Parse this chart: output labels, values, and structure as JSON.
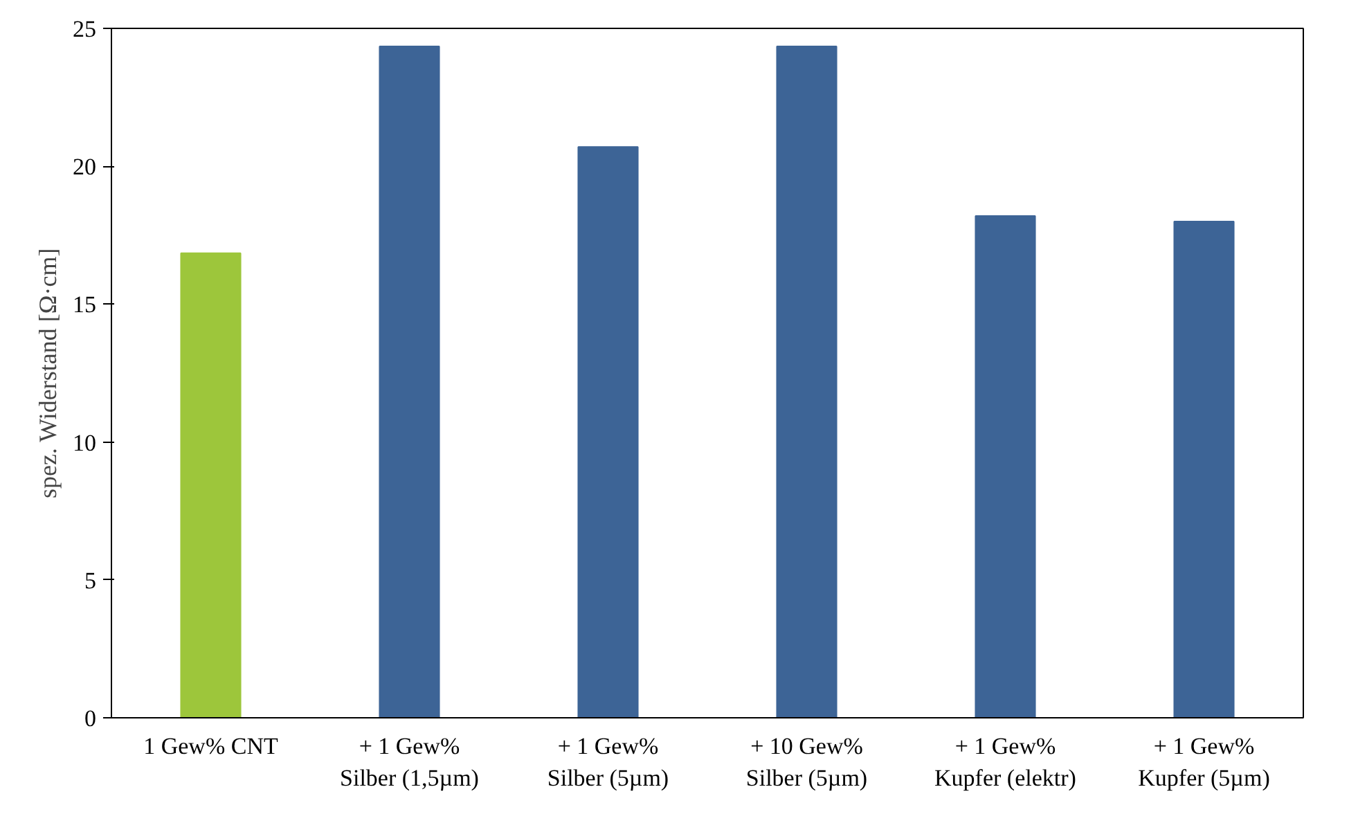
{
  "chart_data": {
    "type": "bar",
    "ylabel": "spez. Widerstand [Ω·cm]",
    "categories": [
      "1 Gew% CNT",
      "+ 1 Gew%\nSilber (1,5µm)",
      "+ 1 Gew%\nSilber (5µm)",
      "+ 10 Gew%\nSilber (5µm)",
      "+ 1 Gew%\nKupfer (elektr)",
      "+ 1 Gew%\nKupfer (5µm)"
    ],
    "values": [
      16.85,
      24.35,
      20.7,
      24.35,
      18.2,
      18.0
    ],
    "colors": [
      "#9dc63b",
      "#3d6496",
      "#3d6496",
      "#3d6496",
      "#3d6496",
      "#3d6496"
    ],
    "ylim": [
      0,
      25
    ],
    "yticks": [
      0,
      5,
      10,
      15,
      20,
      25
    ],
    "grid": false
  }
}
